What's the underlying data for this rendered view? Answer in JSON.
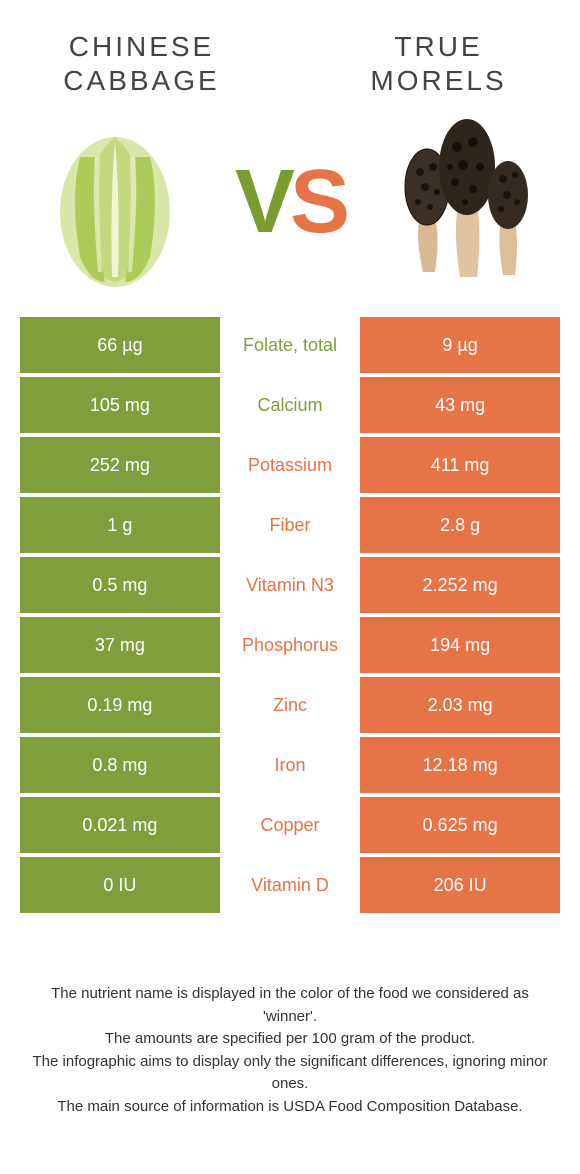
{
  "colors": {
    "left": "#809e3c",
    "right": "#e67447",
    "text": "#333333",
    "bg": "#ffffff"
  },
  "header": {
    "left_line1": "CHINESE",
    "left_line2": "CABBAGE",
    "right_line1": "TRUE",
    "right_line2": "MORELS"
  },
  "vs": {
    "v": "V",
    "s": "S"
  },
  "rows": [
    {
      "left": "66 µg",
      "label": "Folate, total",
      "right": "9 µg",
      "winner": "left"
    },
    {
      "left": "105 mg",
      "label": "Calcium",
      "right": "43 mg",
      "winner": "left"
    },
    {
      "left": "252 mg",
      "label": "Potassium",
      "right": "411 mg",
      "winner": "right"
    },
    {
      "left": "1 g",
      "label": "Fiber",
      "right": "2.8 g",
      "winner": "right"
    },
    {
      "left": "0.5 mg",
      "label": "Vitamin N3",
      "right": "2.252 mg",
      "winner": "right"
    },
    {
      "left": "37 mg",
      "label": "Phosphorus",
      "right": "194 mg",
      "winner": "right"
    },
    {
      "left": "0.19 mg",
      "label": "Zinc",
      "right": "2.03 mg",
      "winner": "right"
    },
    {
      "left": "0.8 mg",
      "label": "Iron",
      "right": "12.18 mg",
      "winner": "right"
    },
    {
      "left": "0.021 mg",
      "label": "Copper",
      "right": "0.625 mg",
      "winner": "right"
    },
    {
      "left": "0 IU",
      "label": "Vitamin D",
      "right": "206 IU",
      "winner": "right"
    }
  ],
  "footer": {
    "line1": "The nutrient name is displayed in the color of the food we considered as 'winner'.",
    "line2": "The amounts are specified per 100 gram of the product.",
    "line3": "The infographic aims to display only the significant differences, ignoring minor ones.",
    "line4": "The main source of information is USDA Food Composition Database."
  }
}
